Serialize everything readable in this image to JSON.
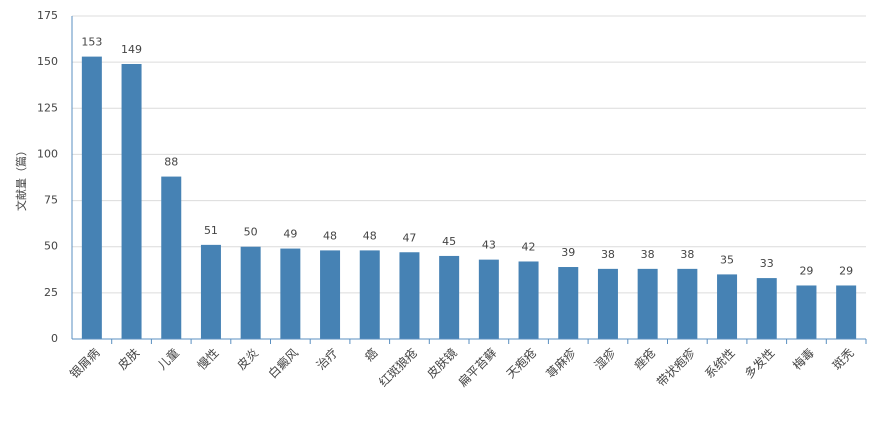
{
  "chart_data": {
    "type": "bar",
    "y_label": "文献量（篇）",
    "categories": [
      "银屑病",
      "皮肤",
      "儿童",
      "慢性",
      "皮炎",
      "白癜风",
      "治疗",
      "癌",
      "红斑狼疮",
      "皮肤镜",
      "扁平苔藓",
      "天疱疮",
      "荨麻疹",
      "湿疹",
      "痤疮",
      "带状疱疹",
      "系统性",
      "多发性",
      "梅毒",
      "斑秃"
    ],
    "values": [
      153,
      149,
      88,
      51,
      50,
      49,
      48,
      48,
      47,
      45,
      43,
      42,
      39,
      38,
      38,
      38,
      35,
      33,
      29,
      29
    ],
    "color": "#4682b4",
    "ylim": [
      0,
      175
    ],
    "yticks": [
      0,
      25,
      50,
      75,
      100,
      125,
      150,
      175
    ],
    "grid": true,
    "data_labels": true
  }
}
